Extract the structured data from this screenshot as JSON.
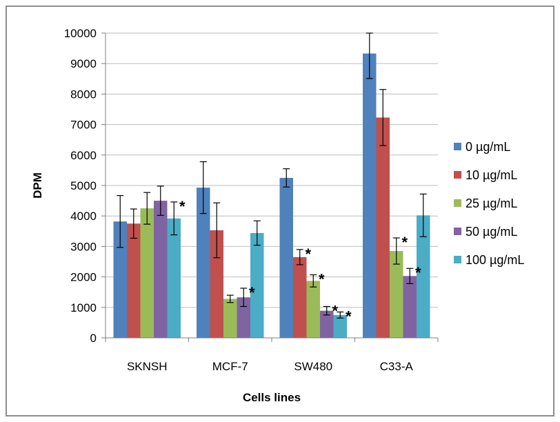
{
  "chart_data": {
    "type": "bar",
    "title": "",
    "xlabel": "Cells lines",
    "ylabel": "DPM",
    "ylim": [
      0,
      10000
    ],
    "yticks": [
      0,
      1000,
      2000,
      3000,
      4000,
      5000,
      6000,
      7000,
      8000,
      9000,
      10000
    ],
    "categories": [
      "SKNSH",
      "MCF-7",
      "SW480",
      "C33-A"
    ],
    "grid": true,
    "legend_position": "right",
    "series": [
      {
        "name": "0 µg/mL",
        "color": "#4f81bd",
        "values": [
          3820,
          4930,
          5250,
          9330
        ],
        "errors": [
          850,
          850,
          300,
          820
        ],
        "significant": [
          false,
          false,
          false,
          false
        ]
      },
      {
        "name": "10 µg/mL",
        "color": "#c0504d",
        "values": [
          3750,
          3530,
          2650,
          7230
        ],
        "errors": [
          480,
          900,
          250,
          920
        ],
        "significant": [
          false,
          false,
          true,
          false
        ]
      },
      {
        "name": "25 µg/mL",
        "color": "#9bbb59",
        "values": [
          4250,
          1280,
          1870,
          2850
        ],
        "errors": [
          520,
          120,
          200,
          430
        ],
        "significant": [
          false,
          false,
          true,
          true
        ]
      },
      {
        "name": "50 µg/mL",
        "color": "#8064a2",
        "values": [
          4500,
          1330,
          890,
          2030
        ],
        "errors": [
          480,
          300,
          140,
          250
        ],
        "significant": [
          false,
          true,
          true,
          true
        ]
      },
      {
        "name": "100 µg/mL",
        "color": "#4bacc6",
        "values": [
          3920,
          3440,
          750,
          4020
        ],
        "errors": [
          540,
          400,
          100,
          700
        ],
        "significant": [
          true,
          false,
          true,
          false
        ]
      }
    ],
    "significance_marker": "*"
  }
}
